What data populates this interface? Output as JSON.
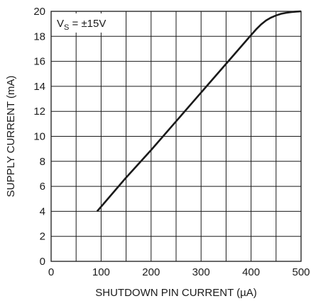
{
  "chart_data": {
    "type": "line",
    "title": "",
    "xlabel": "SHUTDOWN PIN CURRENT (µA)",
    "ylabel": "SUPPLY CURRENT (mA)",
    "xlim": [
      0,
      500
    ],
    "ylim": [
      0,
      20
    ],
    "xticks": [
      0,
      100,
      200,
      300,
      400,
      500
    ],
    "yticks": [
      0,
      2,
      4,
      6,
      8,
      10,
      12,
      14,
      16,
      18,
      20
    ],
    "x_minor_step": 50,
    "grid": true,
    "annotation": {
      "prefix": "V",
      "subscript": "S",
      "suffix": " = ±15V"
    },
    "series": [
      {
        "x": [
          92,
          150,
          200,
          250,
          300,
          350,
          400,
          410,
          420,
          430,
          440,
          450,
          460,
          470,
          480,
          490,
          500
        ],
        "y": [
          4.0,
          6.7,
          8.9,
          11.2,
          13.5,
          15.8,
          18.1,
          18.55,
          18.95,
          19.27,
          19.5,
          19.67,
          19.8,
          19.88,
          19.94,
          19.98,
          20.0
        ]
      }
    ]
  }
}
